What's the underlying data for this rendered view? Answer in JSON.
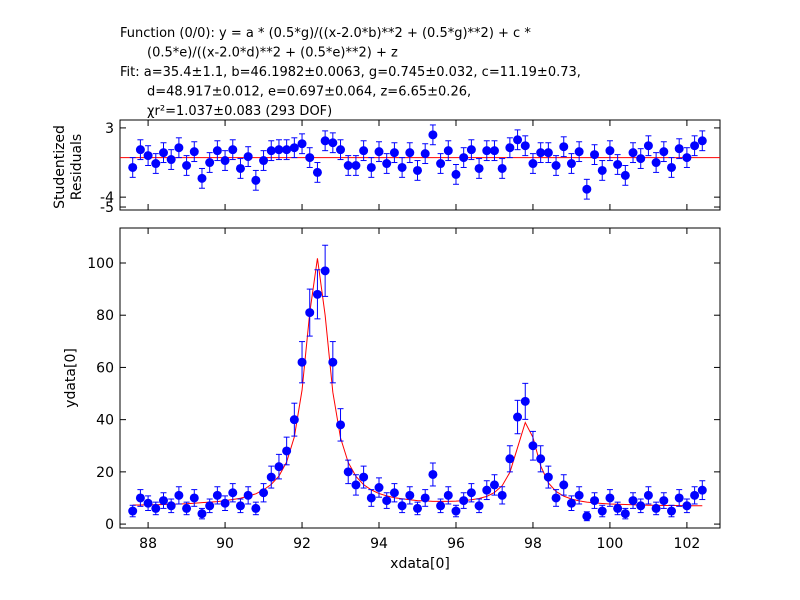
{
  "chart_data": [
    {
      "type": "scatter",
      "title_lines": [
        "Function (0/0): y = a * (0.5*g)/((x-2.0*b)**2 + (0.5*g)**2) + c *",
        "(0.5*e)/((x-2.0*d)**2 + (0.5*e)**2) + z",
        "Fit: a=35.4±1.1, b=46.1982±0.0063, g=0.745±0.032, c=11.19±0.73,",
        "d=48.917±0.012, e=0.697±0.064, z=6.65±0.26,",
        "χr²=1.037±0.083 (293 DOF)"
      ],
      "y_label": [
        "Studentized",
        "Residuals"
      ],
      "xlim": [
        87.27,
        102.86
      ],
      "xticks": [
        88,
        90,
        92,
        94,
        96,
        98,
        100,
        102
      ],
      "ylim": [
        -5.3,
        3.8
      ],
      "yticks": [
        3,
        -4,
        -5
      ],
      "values": [
        -1.0,
        0.8,
        0.2,
        -0.6,
        0.5,
        -0.2,
        1.0,
        -0.8,
        0.6,
        -2.1,
        -0.5,
        0.7,
        -0.3,
        0.8,
        -1.1,
        0.1,
        -2.3,
        -0.3,
        0.7,
        0.8,
        0.8,
        1.0,
        1.4,
        0.0,
        -1.5,
        1.7,
        1.5,
        0.8,
        -0.8,
        -0.8,
        0.7,
        -1.0,
        0.6,
        -0.6,
        0.5,
        -1.0,
        0.5,
        -1.3,
        0.4,
        2.3,
        -0.6,
        0.7,
        -1.7,
        0.0,
        0.8,
        -1.1,
        0.7,
        0.7,
        -1.1,
        1.0,
        1.8,
        1.2,
        -0.6,
        0.5,
        0.5,
        -0.8,
        1.1,
        -0.6,
        0.6,
        -3.2,
        0.3,
        -1.3,
        0.7,
        -0.7,
        -1.8,
        0.5,
        -0.1,
        1.2,
        -0.5,
        0.6,
        -1.0,
        0.9,
        0.0,
        1.2,
        1.7
      ],
      "error": 1,
      "fit": 0,
      "color": "#0000ff",
      "fit_color": "#ff0000"
    },
    {
      "type": "scatter",
      "x_label": "xdata[0]",
      "y_label": "ydata[0]",
      "xlim": [
        87.27,
        102.86
      ],
      "xticks": [
        88,
        90,
        92,
        94,
        96,
        98,
        100,
        102
      ],
      "ylim": [
        -1.5,
        113.4
      ],
      "yticks": [
        0,
        20,
        40,
        60,
        80,
        100
      ],
      "x": [
        87.6,
        87.8,
        88.0,
        88.2,
        88.4,
        88.6,
        88.8,
        89.0,
        89.2,
        89.4,
        89.6,
        89.8,
        90.0,
        90.2,
        90.4,
        90.6,
        90.8,
        91.0,
        91.2,
        91.4,
        91.6,
        91.8,
        92.0,
        92.2,
        92.4,
        92.6,
        92.8,
        93.0,
        93.2,
        93.4,
        93.6,
        93.8,
        94.0,
        94.2,
        94.4,
        94.6,
        94.8,
        95.0,
        95.2,
        95.4,
        95.6,
        95.8,
        96.0,
        96.2,
        96.4,
        96.6,
        96.8,
        97.0,
        97.2,
        97.4,
        97.6,
        97.8,
        98.0,
        98.2,
        98.4,
        98.6,
        98.8,
        99.0,
        99.2,
        99.4,
        99.6,
        99.8,
        100.0,
        100.2,
        100.4,
        100.6,
        100.8,
        101.0,
        101.2,
        101.4,
        101.6,
        101.8,
        102.0,
        102.2,
        102.4
      ],
      "values": [
        5,
        10,
        8,
        6,
        9,
        7,
        11,
        6,
        10,
        4,
        7,
        11,
        8,
        12,
        7,
        11,
        6,
        12,
        18,
        22,
        28,
        40,
        62,
        81,
        88,
        97,
        62,
        38,
        20,
        15,
        18,
        10,
        14,
        9,
        12,
        7,
        11,
        6,
        10,
        19,
        7,
        11,
        5,
        9,
        12,
        7,
        13,
        15,
        11,
        25,
        41,
        47,
        30,
        25,
        18,
        10,
        15,
        8,
        11,
        3,
        9,
        5,
        10,
        6,
        4,
        9,
        7,
        11,
        6,
        9,
        5,
        10,
        7,
        11,
        13
      ],
      "errors": [
        2.2,
        3.2,
        2.8,
        2.4,
        3.0,
        2.6,
        3.3,
        2.4,
        3.2,
        2.0,
        2.6,
        3.3,
        2.8,
        3.5,
        2.6,
        3.3,
        2.4,
        3.5,
        4.2,
        4.7,
        5.3,
        6.3,
        7.9,
        9.0,
        9.4,
        9.8,
        7.9,
        6.2,
        4.5,
        3.9,
        4.2,
        3.2,
        3.7,
        3.0,
        3.5,
        2.6,
        3.3,
        2.4,
        3.2,
        4.4,
        2.6,
        3.3,
        2.2,
        3.0,
        3.5,
        2.6,
        3.6,
        3.9,
        3.3,
        5.0,
        6.4,
        6.9,
        5.5,
        5.0,
        4.2,
        3.2,
        3.9,
        2.8,
        3.3,
        1.7,
        3.0,
        2.2,
        3.2,
        2.4,
        2.0,
        3.0,
        2.6,
        3.3,
        2.4,
        3.0,
        2.2,
        3.2,
        2.6,
        3.3,
        3.6
      ],
      "fit": [
        7.3,
        7.3,
        7.4,
        7.4,
        7.5,
        7.6,
        7.7,
        7.8,
        8.0,
        8.2,
        8.4,
        8.6,
        9.0,
        9.4,
        9.9,
        10.7,
        11.6,
        13.1,
        15.2,
        18.4,
        23.8,
        33.4,
        51.3,
        80.9,
        101.8,
        80.0,
        50.5,
        33.0,
        23.6,
        18.3,
        15.1,
        13.1,
        11.7,
        10.8,
        10.1,
        9.7,
        9.3,
        9.0,
        8.9,
        8.7,
        8.7,
        8.7,
        8.8,
        9.0,
        9.3,
        9.8,
        10.6,
        12.1,
        14.7,
        19.8,
        29.3,
        38.9,
        33.2,
        22.3,
        15.8,
        12.5,
        10.7,
        9.6,
        8.9,
        8.4,
        8.1,
        7.9,
        7.7,
        7.6,
        7.5,
        7.4,
        7.3,
        7.2,
        7.2,
        7.1,
        7.1,
        7.1,
        7.0,
        7.0,
        7.0
      ],
      "color": "#0000ff",
      "fit_color": "#ff0000"
    }
  ]
}
